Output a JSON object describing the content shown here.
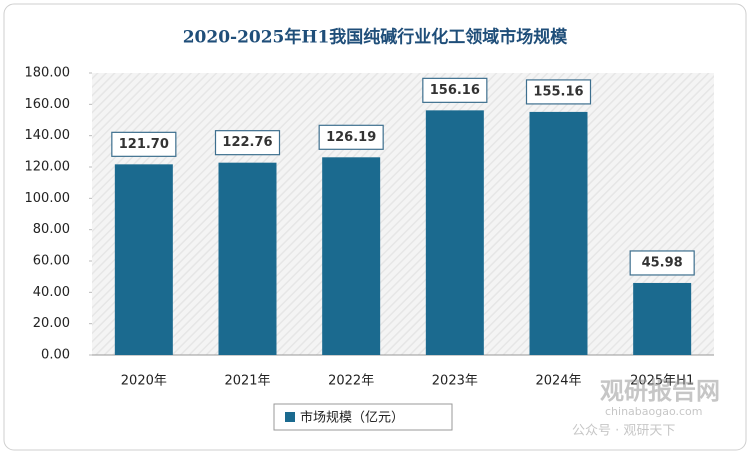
{
  "chart_data": {
    "type": "bar",
    "title": "2020-2025年H1我国纯碱行业化工领域市场规模",
    "categories": [
      "2020年",
      "2021年",
      "2022年",
      "2023年",
      "2024年",
      "2025年H1"
    ],
    "series": [
      {
        "name": "市场规模（亿元）",
        "color": "#1b6a8f",
        "values": [
          121.7,
          122.76,
          126.19,
          156.16,
          155.16,
          45.98
        ],
        "value_labels": [
          "121.70",
          "122.76",
          "126.19",
          "156.16",
          "155.16",
          "45.98"
        ]
      }
    ],
    "ylim": [
      0,
      180
    ],
    "yticks": [
      {
        "value": 0,
        "label": "0.00"
      },
      {
        "value": 20,
        "label": "20.00"
      },
      {
        "value": 40,
        "label": "40.00"
      },
      {
        "value": 60,
        "label": "60.00"
      },
      {
        "value": 80,
        "label": "80.00"
      },
      {
        "value": 100,
        "label": "100.00"
      },
      {
        "value": 120,
        "label": "120.00"
      },
      {
        "value": 140,
        "label": "140.00"
      },
      {
        "value": 160,
        "label": "160.00"
      },
      {
        "value": 180,
        "label": "180.00"
      }
    ],
    "legend": "bottom",
    "watermark": [
      "观研报告网",
      "chinabaogao.com",
      "公众号 · 观研天下"
    ]
  }
}
